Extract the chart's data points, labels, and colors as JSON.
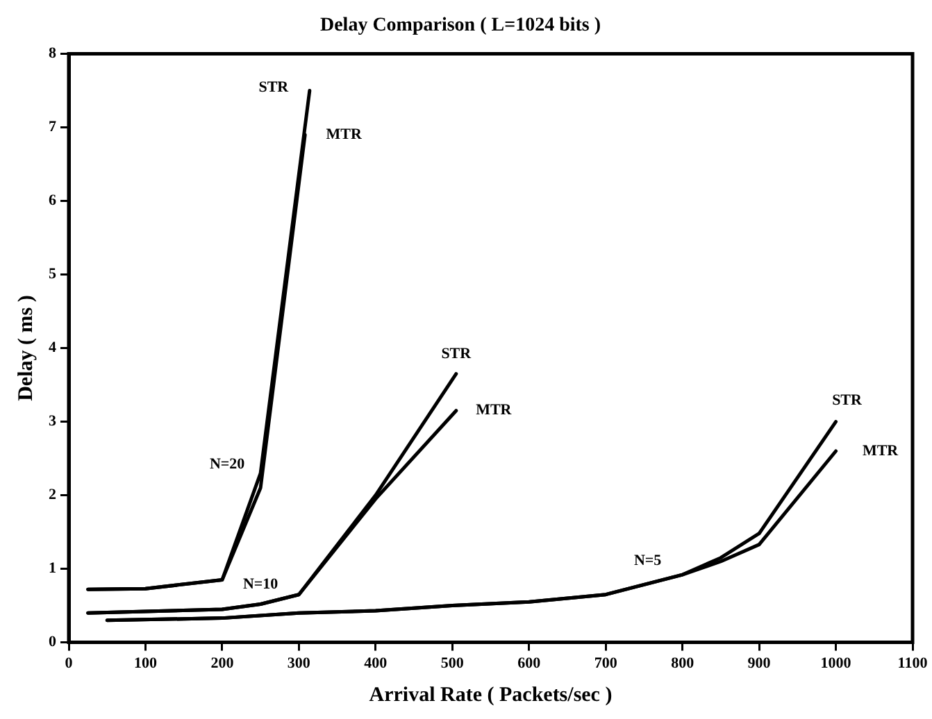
{
  "chart_data": {
    "type": "line",
    "title": "Delay Comparison ( L=1024 bits )",
    "xlabel": "Arrival Rate ( Packets/sec )",
    "ylabel": "Delay ( ms )",
    "xlim": [
      0,
      1100
    ],
    "xticks": [
      0,
      100,
      200,
      300,
      400,
      500,
      600,
      700,
      800,
      900,
      1000,
      1100
    ],
    "ylim": [
      0,
      8
    ],
    "yticks": [
      0,
      1,
      2,
      3,
      4,
      5,
      6,
      7,
      8
    ],
    "grid": false,
    "legend": false,
    "marker": "none",
    "line_style": "solid",
    "series": [
      {
        "color": "#000000",
        "x": [
          25,
          100,
          200,
          250,
          314
        ],
        "values": [
          0.72,
          0.73,
          0.85,
          2.3,
          7.5
        ]
      },
      {
        "color": "#000000",
        "x": [
          25,
          100,
          200,
          250,
          308
        ],
        "values": [
          0.72,
          0.73,
          0.85,
          2.1,
          6.9
        ]
      },
      {
        "color": "#000000",
        "x": [
          25,
          200,
          250,
          300,
          400,
          505
        ],
        "values": [
          0.4,
          0.45,
          0.52,
          0.65,
          2.0,
          3.65
        ]
      },
      {
        "color": "#000000",
        "x": [
          25,
          200,
          250,
          300,
          400,
          505
        ],
        "values": [
          0.4,
          0.45,
          0.52,
          0.65,
          1.95,
          3.15
        ]
      },
      {
        "color": "#000000",
        "x": [
          50,
          200,
          300,
          400,
          500,
          600,
          700,
          800,
          850,
          900,
          1000
        ],
        "values": [
          0.3,
          0.33,
          0.4,
          0.43,
          0.5,
          0.55,
          0.65,
          0.92,
          1.15,
          1.48,
          3.0
        ]
      },
      {
        "color": "#000000",
        "x": [
          50,
          200,
          300,
          400,
          500,
          600,
          700,
          800,
          850,
          900,
          1000
        ],
        "values": [
          0.3,
          0.33,
          0.4,
          0.43,
          0.5,
          0.55,
          0.65,
          0.92,
          1.1,
          1.33,
          2.6
        ]
      }
    ],
    "annotations": [
      {
        "text": "STR",
        "x": 314,
        "y": 7.5
      },
      {
        "text": "MTR",
        "x": 308,
        "y": 6.9
      },
      {
        "text": "N=20",
        "x": 250,
        "y": 2.3
      },
      {
        "text": "STR",
        "x": 505,
        "y": 3.65
      },
      {
        "text": "MTR",
        "x": 505,
        "y": 3.15
      },
      {
        "text": "N=10",
        "x": 250,
        "y": 0.52
      },
      {
        "text": "STR",
        "x": 1000,
        "y": 3.0
      },
      {
        "text": "MTR",
        "x": 1000,
        "y": 2.6
      },
      {
        "text": "N=5",
        "x": 800,
        "y": 0.92
      }
    ]
  }
}
